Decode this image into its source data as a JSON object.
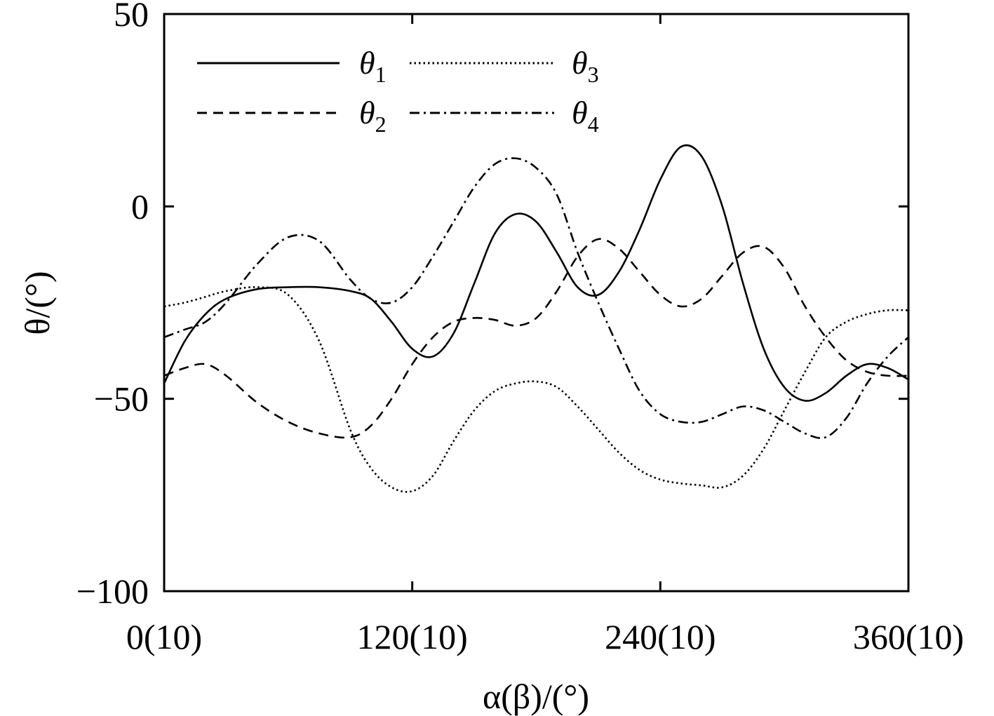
{
  "chart_data": {
    "type": "line",
    "xlabel": "α(β)/(°)",
    "ylabel": "θ/(°)",
    "xlim": [
      0,
      360
    ],
    "ylim": [
      -100,
      50
    ],
    "x_ticks": [
      0,
      120,
      240,
      360
    ],
    "x_tick_labels": [
      "0(10)",
      "120(10)",
      "240(10)",
      "360(10)"
    ],
    "y_ticks": [
      -100,
      -50,
      0,
      50
    ],
    "y_tick_labels": [
      "−100",
      "−50",
      "0",
      "50"
    ],
    "legend_placement": "top-left",
    "grid": false,
    "series": [
      {
        "name": "θ1",
        "base": "θ",
        "sub": "1",
        "dash": "solid",
        "x": [
          0,
          10,
          20,
          30,
          45,
          60,
          75,
          90,
          100,
          110,
          120,
          130,
          140,
          150,
          160,
          170,
          180,
          190,
          200,
          210,
          220,
          230,
          240,
          250,
          260,
          270,
          280,
          290,
          300,
          310,
          320,
          330,
          340,
          350,
          360
        ],
        "y": [
          -46,
          -35,
          -28,
          -24,
          -21.5,
          -21,
          -21,
          -22,
          -24,
          -30,
          -37,
          -39,
          -33,
          -20,
          -7,
          -2,
          -4,
          -12,
          -21,
          -23,
          -17,
          -6,
          7,
          15.5,
          13,
          0,
          -20,
          -37,
          -47,
          -50.5,
          -48.5,
          -44,
          -41,
          -42,
          -45
        ]
      },
      {
        "name": "θ2",
        "base": "θ",
        "sub": "2",
        "dash": "dashed",
        "x": [
          0,
          10,
          20,
          30,
          45,
          60,
          75,
          90,
          100,
          110,
          120,
          130,
          140,
          150,
          160,
          170,
          180,
          190,
          200,
          210,
          220,
          230,
          240,
          250,
          260,
          270,
          280,
          290,
          300,
          310,
          320,
          330,
          340,
          350,
          360
        ],
        "y": [
          -44,
          -42,
          -41,
          -44,
          -51,
          -56,
          -59,
          -60,
          -57,
          -50,
          -41,
          -34,
          -30,
          -29,
          -29.5,
          -31,
          -29,
          -22,
          -13,
          -8.5,
          -11,
          -17,
          -23,
          -26,
          -24,
          -18,
          -12,
          -10.5,
          -16,
          -26,
          -34,
          -40,
          -43,
          -44,
          -44
        ]
      },
      {
        "name": "θ3",
        "base": "θ",
        "sub": "3",
        "dash": "dotted",
        "x": [
          0,
          10,
          20,
          30,
          45,
          60,
          75,
          90,
          100,
          110,
          120,
          130,
          140,
          150,
          160,
          170,
          180,
          190,
          200,
          210,
          220,
          230,
          240,
          250,
          260,
          270,
          280,
          290,
          300,
          310,
          320,
          330,
          340,
          350,
          360
        ],
        "y": [
          -26,
          -25,
          -23.5,
          -22,
          -21,
          -23,
          -35,
          -58,
          -68,
          -73,
          -74,
          -70,
          -61,
          -53,
          -48,
          -46,
          -45.5,
          -47,
          -52,
          -58,
          -64,
          -68.5,
          -71,
          -72,
          -72.5,
          -73,
          -70,
          -63,
          -53,
          -43,
          -34,
          -30,
          -28,
          -27,
          -27
        ]
      },
      {
        "name": "θ4",
        "base": "θ",
        "sub": "4",
        "dash": "dashdot",
        "x": [
          0,
          10,
          20,
          30,
          45,
          60,
          75,
          90,
          100,
          110,
          120,
          130,
          140,
          150,
          160,
          170,
          180,
          190,
          200,
          210,
          220,
          230,
          240,
          250,
          260,
          270,
          280,
          290,
          300,
          310,
          320,
          330,
          340,
          350,
          360
        ],
        "y": [
          -34,
          -32,
          -30,
          -25,
          -15,
          -8,
          -9,
          -19,
          -24,
          -25,
          -21,
          -13,
          -4,
          5,
          11,
          12.5,
          10,
          3,
          -12,
          -25,
          -37,
          -48,
          -54,
          -56,
          -56,
          -54,
          -52,
          -53,
          -56,
          -59,
          -60,
          -55,
          -46,
          -39,
          -34
        ]
      }
    ]
  }
}
